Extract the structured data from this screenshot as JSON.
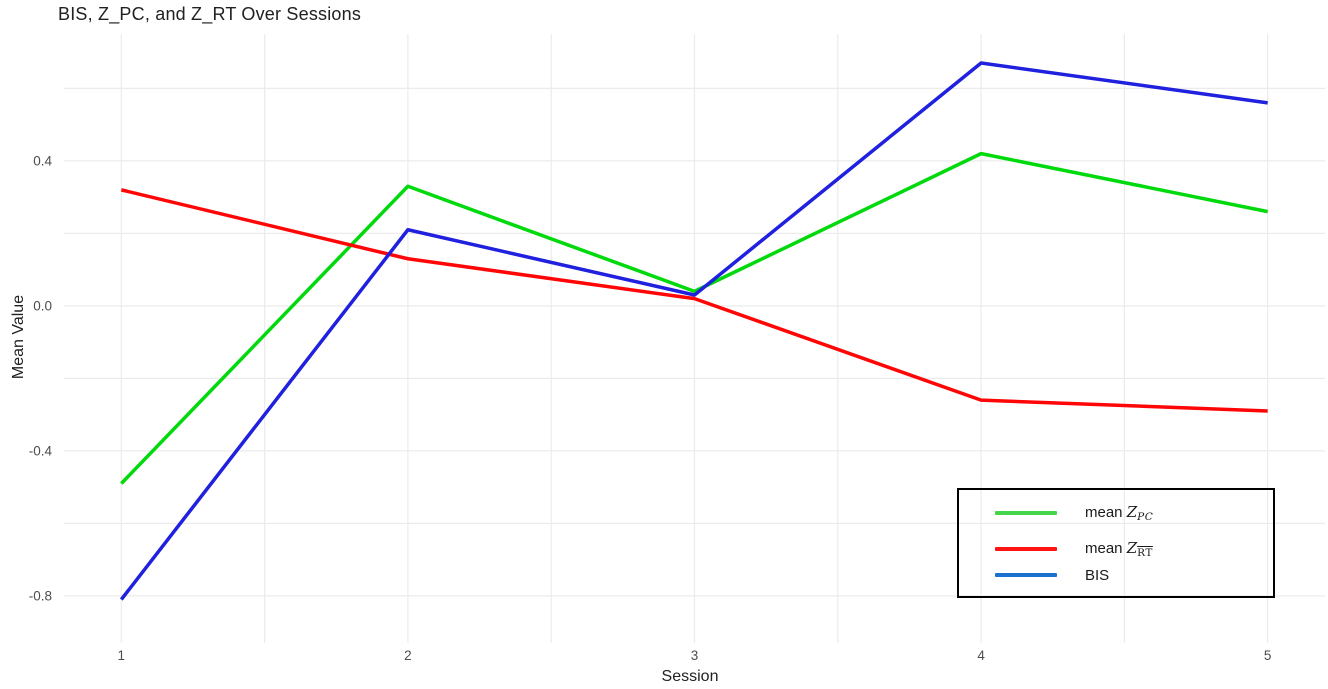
{
  "chart_data": {
    "type": "line",
    "title": "BIS, Z_PC, and Z_RT Over Sessions",
    "x_axis": {
      "label": "Session",
      "tick_values": [
        1,
        2,
        3,
        4,
        5
      ],
      "ticks": [
        "1",
        "2",
        "3",
        "4",
        "5"
      ],
      "range": [
        0.8,
        5.2
      ]
    },
    "y_axis": {
      "label": "Mean Value",
      "tick_values": [
        0.4,
        0.0,
        -0.4,
        -0.8
      ],
      "ticks": [
        "0.4",
        "0.0",
        "-0.4",
        "-0.8"
      ],
      "range": [
        -0.93,
        0.75
      ]
    },
    "x": [
      1,
      2,
      3,
      4,
      5
    ],
    "series": [
      {
        "name": "mean Z_PC",
        "color": "#00d90c",
        "legend_swatch_color": "#44d648",
        "label_parts": {
          "prefix": "mean ",
          "symbol": "Z",
          "subscript": "PC",
          "subscript_italic": true,
          "subscript_overline": false
        },
        "values": [
          -0.49,
          0.33,
          0.04,
          0.42,
          0.26
        ]
      },
      {
        "name": "mean Z_RT",
        "color": "#ff0505",
        "legend_swatch_color": "#ff1414",
        "label_parts": {
          "prefix": "mean ",
          "symbol": "Z",
          "subscript": "RT",
          "subscript_italic": false,
          "subscript_overline": true
        },
        "values": [
          0.32,
          0.13,
          0.02,
          -0.26,
          -0.29
        ]
      },
      {
        "name": "BIS",
        "color": "#2020df",
        "legend_swatch_color": "#1c70d0",
        "label_parts": {
          "prefix": "BIS",
          "symbol": "",
          "subscript": "",
          "subscript_italic": false,
          "subscript_overline": false
        },
        "values": [
          -0.81,
          0.21,
          0.03,
          0.67,
          0.56
        ]
      }
    ],
    "grid": {
      "on": true,
      "color": "#ebebeb",
      "x_lines": [
        1,
        1.5,
        2,
        2.5,
        3,
        3.5,
        4,
        4.5,
        5
      ],
      "y_lines": [
        -0.8,
        -0.6,
        -0.4,
        -0.2,
        0.0,
        0.2,
        0.4,
        0.6
      ]
    },
    "legend_position": "bottom-right",
    "colors": {
      "title_text": "#212121",
      "axis_label_text": "#212121",
      "tick_label_text": "#4d4d4d",
      "legend_border": "#000000",
      "plot_background": "#ffffff"
    },
    "line_width": 3.5
  }
}
